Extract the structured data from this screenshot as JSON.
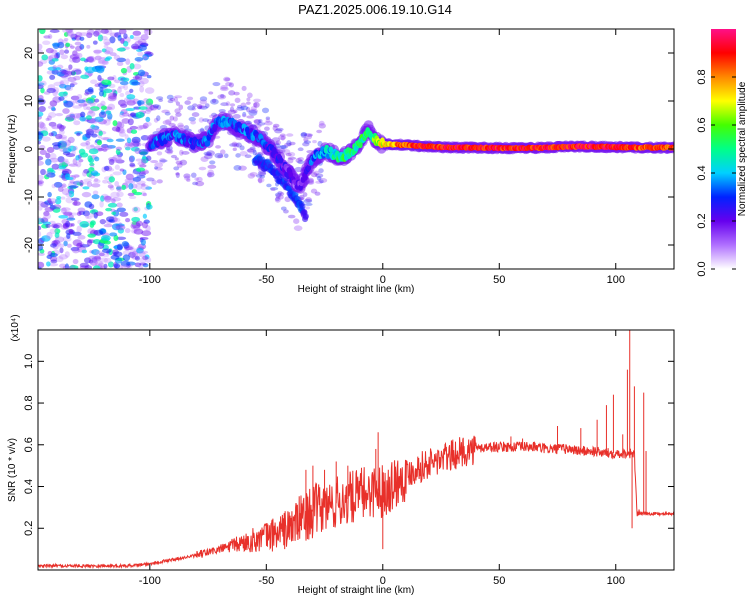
{
  "title": "PAZ1.2025.006.19.10.G14",
  "chart_data": [
    {
      "type": "heatmap",
      "xlabel": "Height of straight line (km)",
      "ylabel": "Frequency (Hz)",
      "xlim": [
        -148,
        125
      ],
      "ylim": [
        -25,
        25
      ],
      "xticks": [
        -100,
        -50,
        0,
        50,
        100
      ],
      "yticks": [
        -20,
        -10,
        0,
        10,
        20
      ],
      "colorbar": {
        "label": "Normalized spectral amplitude",
        "range": [
          0,
          1
        ],
        "ticks": [
          "0.0",
          "0.2",
          "0.4",
          "0.6",
          "0.8"
        ],
        "colors": [
          "#ffffff",
          "#b070ff",
          "#6600ee",
          "#0022ff",
          "#00d0ff",
          "#00ff88",
          "#44ff00",
          "#ffff00",
          "#ff8800",
          "#ff0000",
          "#ff1088"
        ]
      },
      "ridge": {
        "x": [
          -100,
          -95,
          -90,
          -85,
          -80,
          -75,
          -72,
          -68,
          -64,
          -60,
          -56,
          -52,
          -48,
          -45,
          -42,
          -39,
          -36,
          -33,
          -30,
          -27,
          -24,
          -21,
          -18,
          -15,
          -12,
          -9,
          -6,
          -3,
          0,
          10,
          20,
          30,
          40,
          50,
          60,
          70,
          80,
          90,
          100,
          110,
          120,
          125
        ],
        "freq": [
          1,
          2,
          3,
          2,
          1,
          2,
          5,
          6,
          5,
          4,
          3,
          2,
          0,
          -2,
          -4,
          -6,
          -8,
          -5,
          -2,
          -1,
          -0.5,
          -1,
          -2,
          -1,
          0,
          2,
          4,
          2,
          1,
          0.8,
          0.5,
          0.3,
          0.3,
          0.2,
          0.2,
          0.3,
          0.5,
          0.5,
          0.4,
          0.3,
          0.3,
          0.3
        ],
        "amplitude": [
          0.3,
          0.3,
          0.3,
          0.3,
          0.3,
          0.3,
          0.3,
          0.3,
          0.3,
          0.3,
          0.3,
          0.3,
          0.25,
          0.25,
          0.2,
          0.2,
          0.15,
          0.2,
          0.3,
          0.35,
          0.4,
          0.45,
          0.5,
          0.5,
          0.5,
          0.5,
          0.5,
          0.6,
          0.7,
          0.85,
          0.9,
          0.9,
          0.9,
          0.9,
          0.9,
          0.9,
          0.9,
          0.9,
          0.9,
          0.85,
          0.85,
          0.85
        ]
      },
      "branch": {
        "x": [
          -55,
          -48,
          -42,
          -38,
          -35,
          -33
        ],
        "freq": [
          -2,
          -4,
          -7,
          -10,
          -12,
          -14
        ]
      },
      "noise_region": {
        "x": [
          -148,
          -100
        ],
        "freq": [
          -25,
          25
        ]
      }
    },
    {
      "type": "line",
      "xlabel": "Height of straight line (km)",
      "ylabel": "SNR (10 * v/v)",
      "y_scale_label": "(x10⁴)",
      "y_multiplier": 10000,
      "xlim": [
        -148,
        125
      ],
      "ylim": [
        0.0,
        1.15
      ],
      "xticks": [
        -100,
        -50,
        0,
        50,
        100
      ],
      "yticks": [
        "0.2",
        "0.4",
        "0.6",
        "0.8",
        "1.0"
      ],
      "color": "#e8302a",
      "series": [
        {
          "x": [
            -148,
            -120,
            -110,
            -100,
            -90,
            -80,
            -70,
            -60,
            -50,
            -40,
            -35,
            -30,
            -25,
            -20,
            -15,
            -10,
            -5,
            0,
            5,
            10,
            15,
            20,
            25,
            30,
            35,
            40,
            45,
            50,
            55,
            60,
            65,
            70,
            75,
            80,
            85,
            90,
            95,
            100,
            105,
            108,
            109,
            110,
            115,
            120,
            125
          ],
          "y": [
            0.02,
            0.02,
            0.02,
            0.03,
            0.05,
            0.07,
            0.1,
            0.13,
            0.16,
            0.2,
            0.25,
            0.28,
            0.3,
            0.32,
            0.34,
            0.36,
            0.38,
            0.38,
            0.42,
            0.46,
            0.49,
            0.51,
            0.53,
            0.55,
            0.57,
            0.58,
            0.59,
            0.59,
            0.59,
            0.59,
            0.59,
            0.58,
            0.58,
            0.58,
            0.57,
            0.57,
            0.56,
            0.56,
            0.56,
            0.56,
            0.28,
            0.27,
            0.27,
            0.27,
            0.27
          ]
        }
      ],
      "spikes": [
        {
          "x": -33,
          "y": 0.48
        },
        {
          "x": -30,
          "y": 0.5
        },
        {
          "x": -25,
          "y": 0.48
        },
        {
          "x": -20,
          "y": 0.52
        },
        {
          "x": -15,
          "y": 0.5
        },
        {
          "x": -3,
          "y": 0.58
        },
        {
          "x": -2,
          "y": 0.66
        },
        {
          "x": 0,
          "y": 0.1
        },
        {
          "x": 5,
          "y": 0.52
        },
        {
          "x": 55,
          "y": 0.64
        },
        {
          "x": 60,
          "y": 0.63
        },
        {
          "x": 75,
          "y": 0.69
        },
        {
          "x": 85,
          "y": 0.68
        },
        {
          "x": 92,
          "y": 0.72
        },
        {
          "x": 96,
          "y": 0.79
        },
        {
          "x": 99,
          "y": 0.84
        },
        {
          "x": 103,
          "y": 0.65
        },
        {
          "x": 105,
          "y": 0.96
        },
        {
          "x": 106,
          "y": 1.15
        },
        {
          "x": 107,
          "y": 0.2
        },
        {
          "x": 108,
          "y": 0.88
        },
        {
          "x": 112,
          "y": 0.85
        },
        {
          "x": 113,
          "y": 0.57
        }
      ]
    }
  ]
}
